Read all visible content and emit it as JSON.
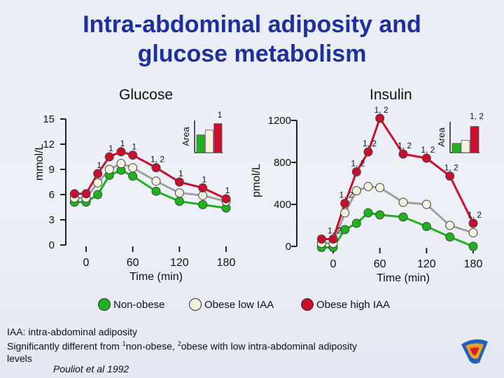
{
  "title_line1": "Intra-abdominal adiposity and",
  "title_line2": "glucose metabolism",
  "colors": {
    "non_obese": "#1db31d",
    "obese_low": "#f4f2dd",
    "obese_high": "#c8102e",
    "line_grey": "#a0a0a0",
    "title": "#1f2f9e"
  },
  "legend": [
    {
      "label": "Non-obese",
      "color": "#1db31d"
    },
    {
      "label": "Obese low IAA",
      "color": "#f4f2dd"
    },
    {
      "label": "Obese high IAA",
      "color": "#c8102e"
    }
  ],
  "footnote": {
    "line1": "IAA: intra-abdominal adiposity",
    "line2_a": "Significantly different from ",
    "sup1": "1",
    "line2_b": "non-obese, ",
    "sup2": "2",
    "line2_c": "obese with low intra-abdominal adiposity",
    "line3": "levels",
    "citation": "Pouliot et al 1992"
  },
  "chart_data": [
    {
      "type": "line",
      "title": "Glucose",
      "ylabel": "mmol/L",
      "xlabel": "Time (min)",
      "x": [
        -15,
        0,
        15,
        30,
        45,
        60,
        90,
        120,
        150,
        180
      ],
      "xticks": [
        0,
        60,
        120,
        180
      ],
      "ylim": [
        0,
        15
      ],
      "yticks": [
        0,
        3,
        6,
        9,
        12,
        15
      ],
      "series": [
        {
          "name": "Non-obese",
          "values": [
            5.6,
            5.6,
            6.5,
            8.8,
            9.4,
            8.7,
            6.9,
            5.7,
            5.3,
            4.9
          ]
        },
        {
          "name": "Obese low IAA",
          "values": [
            5.6,
            5.6,
            7.4,
            9.0,
            9.7,
            9.2,
            7.6,
            6.2,
            5.9,
            5.2
          ]
        },
        {
          "name": "Obese high IAA",
          "values": [
            5.6,
            5.6,
            8.0,
            10.0,
            10.6,
            10.2,
            8.7,
            7.0,
            6.3,
            5.0
          ]
        }
      ],
      "significance": [
        "",
        "",
        "1",
        "1",
        "1",
        "1",
        "1, 2",
        "1",
        "1",
        "1"
      ],
      "inset": {
        "ylabel": "Area",
        "label": "1",
        "values": [
          0.55,
          0.7,
          0.9
        ]
      }
    },
    {
      "type": "line",
      "title": "Insulin",
      "ylabel": "pmol/L",
      "xlabel": "Time (min)",
      "x": [
        -15,
        0,
        15,
        30,
        45,
        60,
        90,
        120,
        150,
        180
      ],
      "xticks": [
        0,
        60,
        120,
        180
      ],
      "ylim": [
        0,
        1200
      ],
      "yticks": [
        0,
        400,
        800,
        1200
      ],
      "yticks_shown": [
        0,
        400,
        800,
        1200
      ],
      "series": [
        {
          "name": "Non-obese",
          "values": [
            30,
            30,
            200,
            260,
            360,
            340,
            320,
            230,
            130,
            40
          ]
        },
        {
          "name": "Obese low IAA",
          "values": [
            30,
            30,
            320,
            530,
            570,
            560,
            420,
            400,
            200,
            130
          ]
        },
        {
          "name": "Obese high IAA",
          "values": [
            30,
            30,
            370,
            670,
            860,
            1180,
            840,
            800,
            630,
            180
          ]
        }
      ],
      "significance": [
        "",
        "1, 2",
        "1, 2",
        "1, 2",
        "1, 2",
        "1, 2",
        "1, 2",
        "1, 2",
        "1, 2",
        "1, 2"
      ],
      "inset": {
        "ylabel": "Area",
        "label": "1, 2",
        "values": [
          0.3,
          0.4,
          0.85
        ]
      }
    }
  ]
}
